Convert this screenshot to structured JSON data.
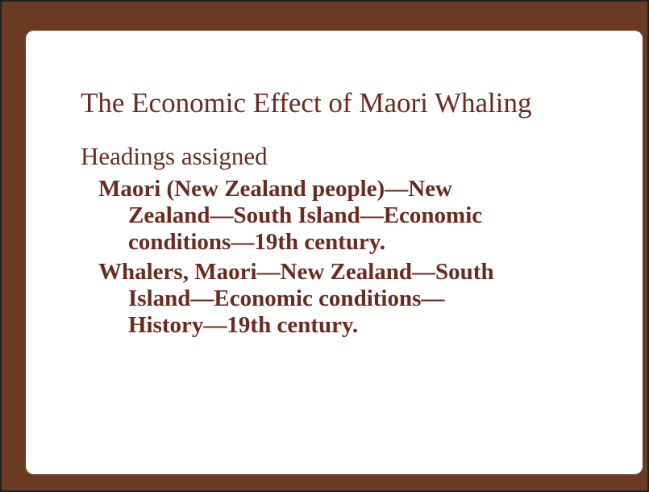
{
  "title": "The Economic Effect of Maori Whaling",
  "subheading": "Headings assigned",
  "headings": [
    [
      "Maori (New Zealand people)—New",
      "Zealand—South Island—Economic",
      "conditions—19th century."
    ],
    [
      "Whalers, Maori—New Zealand—South",
      "Island—Economic conditions—",
      "History—19th century."
    ]
  ]
}
